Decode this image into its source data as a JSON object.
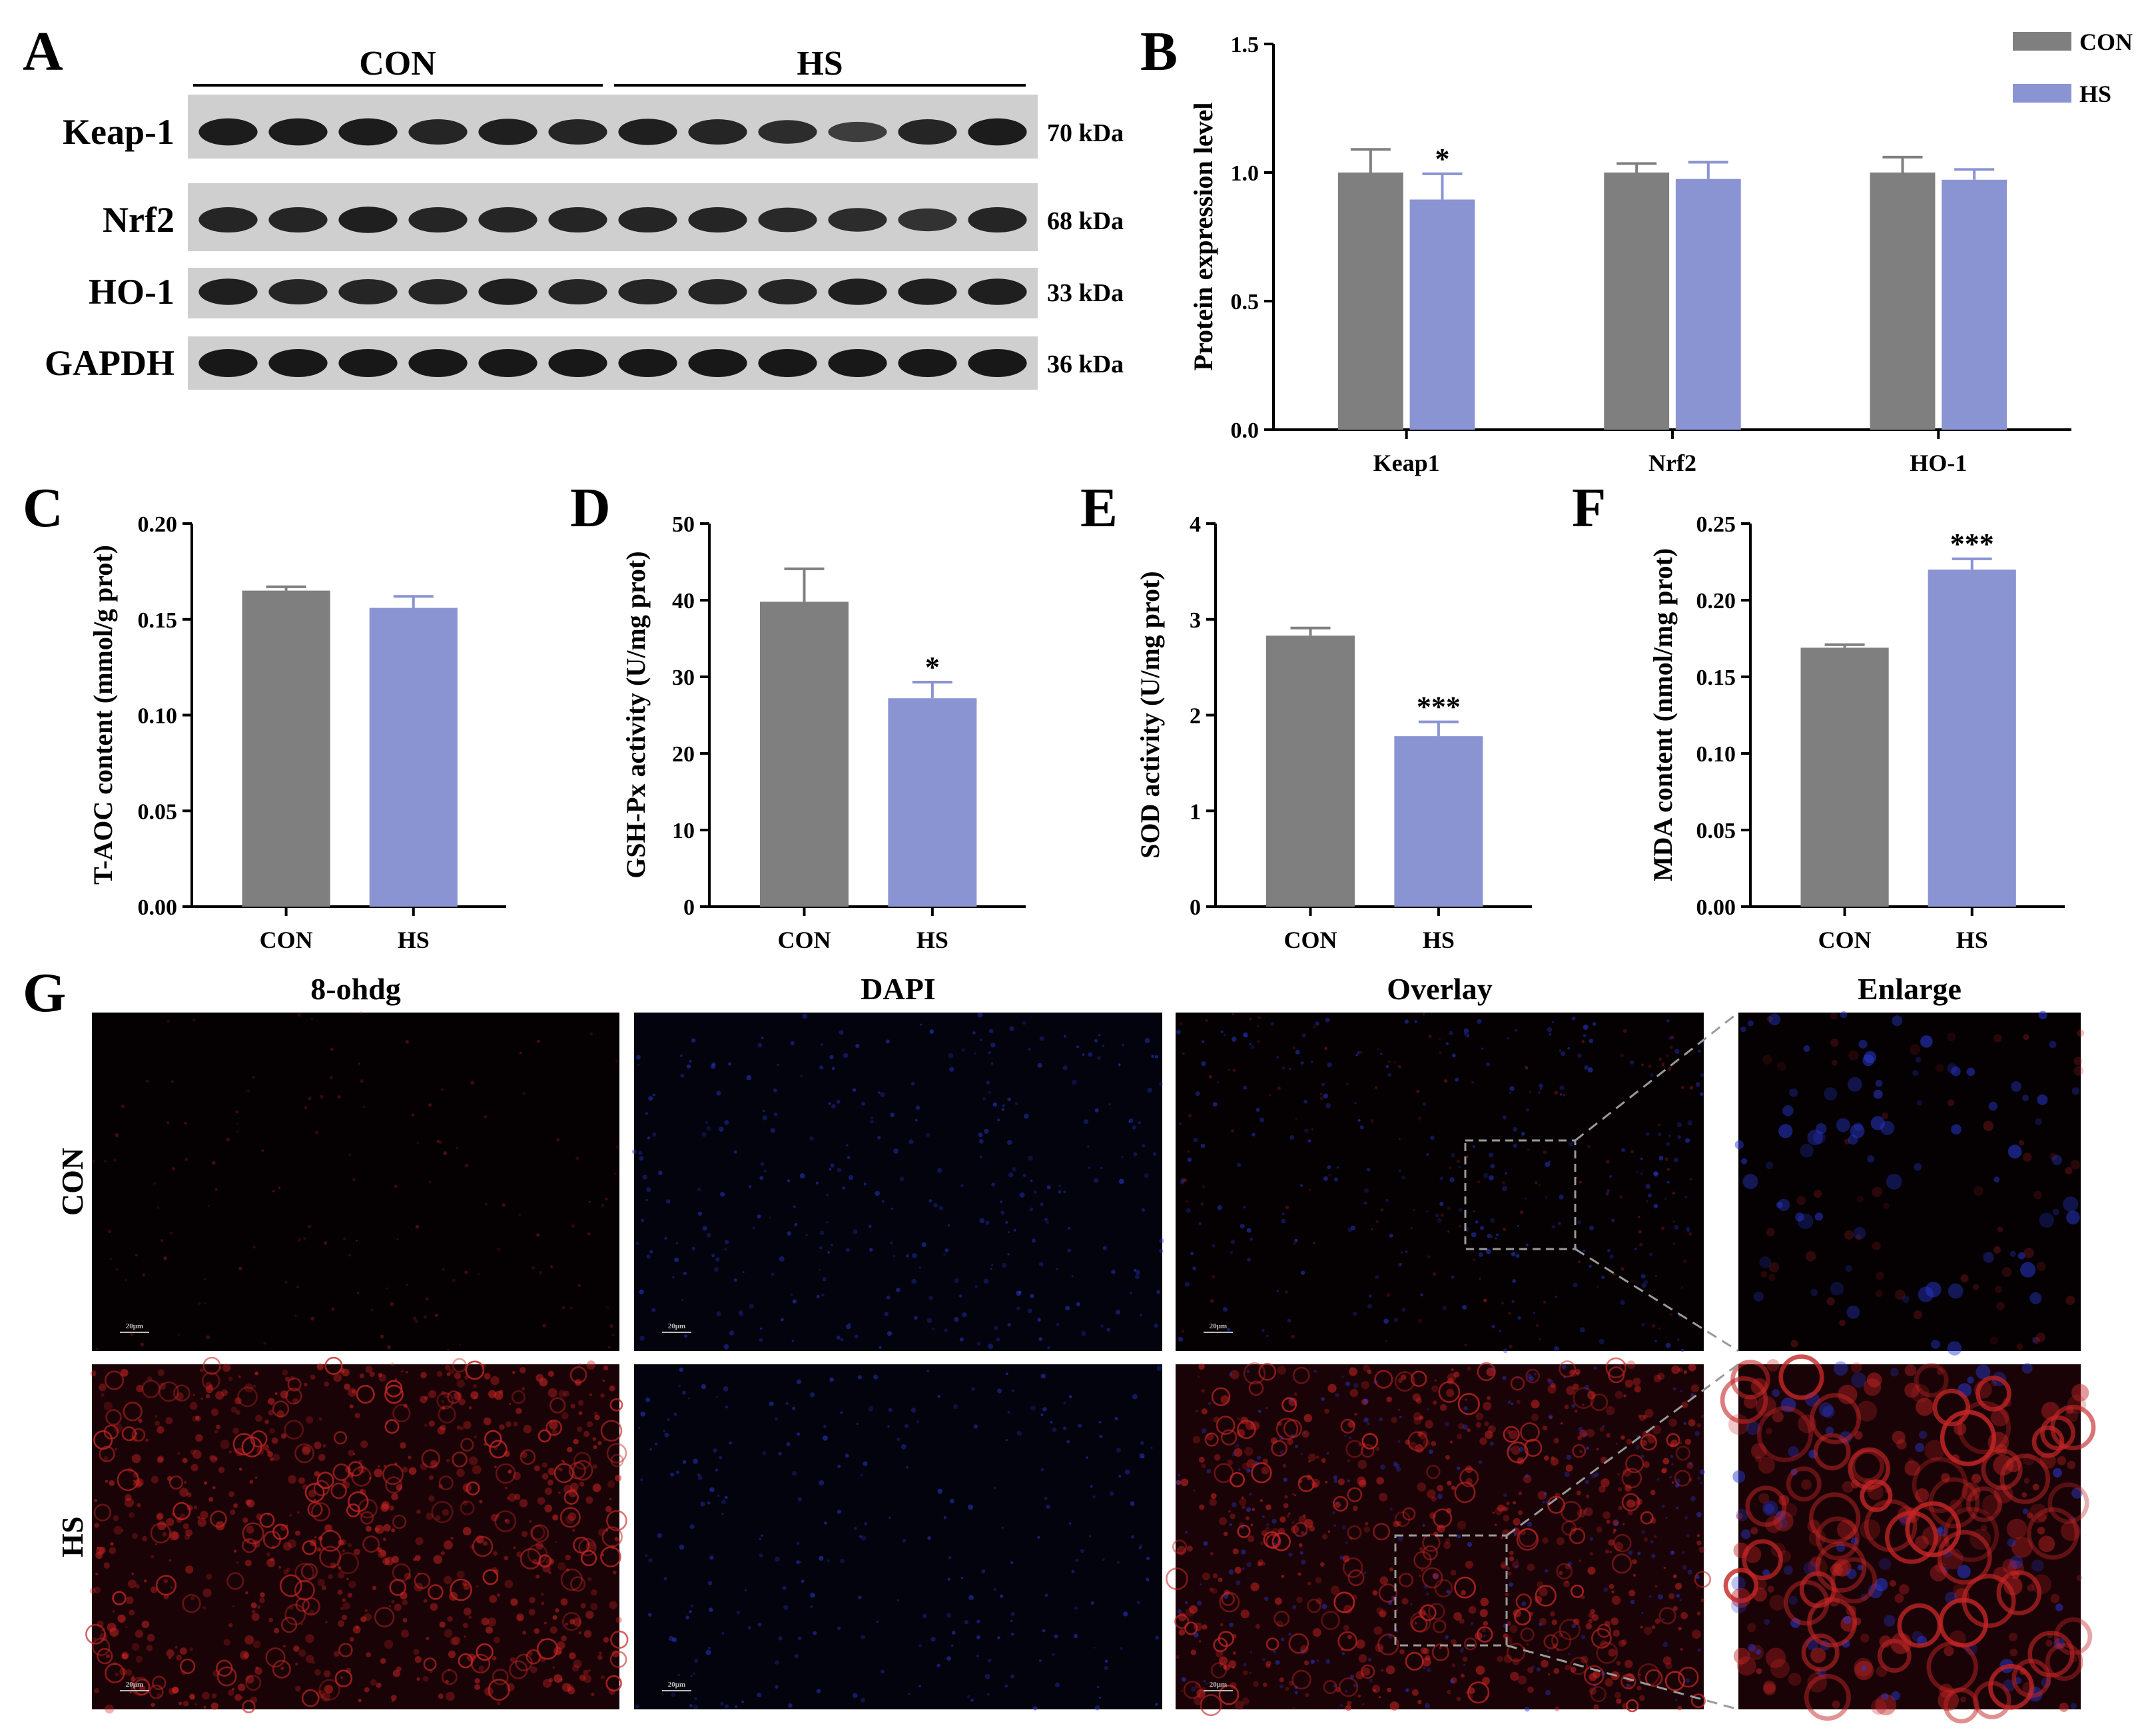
{
  "colors": {
    "con": "#7f7f7f",
    "hs": "#8b94d2",
    "axis": "#000000",
    "blot_bg": "#cfcfcf",
    "band": "#181818"
  },
  "panel_letters": [
    "A",
    "B",
    "C",
    "D",
    "E",
    "F",
    "G"
  ],
  "western_blot": {
    "groups": [
      "CON",
      "HS"
    ],
    "lanes_per_group": 6,
    "rows": [
      {
        "label": "Keap-1",
        "kda": "70 kDa",
        "intensity": [
          0.95,
          0.95,
          0.95,
          0.85,
          0.9,
          0.85,
          0.9,
          0.85,
          0.75,
          0.55,
          0.85,
          0.95
        ]
      },
      {
        "label": "Nrf2",
        "kda": "68 kDa",
        "intensity": [
          0.85,
          0.85,
          0.9,
          0.85,
          0.85,
          0.85,
          0.85,
          0.85,
          0.8,
          0.75,
          0.7,
          0.85
        ]
      },
      {
        "label": "HO-1",
        "kda": "33 kDa",
        "intensity": [
          0.9,
          0.85,
          0.85,
          0.85,
          0.9,
          0.85,
          0.85,
          0.85,
          0.85,
          0.9,
          0.9,
          0.9
        ]
      },
      {
        "label": "GAPDH",
        "kda": "36 kDa",
        "intensity": [
          1,
          1,
          1,
          1,
          1,
          1,
          1,
          1,
          1,
          1,
          1,
          1
        ]
      }
    ]
  },
  "chart_data": [
    {
      "panel": "B",
      "type": "bar",
      "ylabel": "Protein expression level",
      "categories": [
        "Keap1",
        "Nrf2",
        "HO-1"
      ],
      "yticks": [
        "0.0",
        "0.5",
        "1.0",
        "1.5"
      ],
      "ylim": [
        0,
        1.5
      ],
      "tick_step": 0.5,
      "legend_placement": "top-right",
      "series": [
        {
          "name": "CON",
          "values": [
            1.0,
            1.0,
            1.0
          ],
          "errors": [
            0.09,
            0.035,
            0.06
          ]
        },
        {
          "name": "HS",
          "values": [
            0.895,
            0.975,
            0.972
          ],
          "errors": [
            0.1,
            0.065,
            0.04
          ]
        }
      ],
      "annotations": [
        {
          "category": "Keap1",
          "series": "HS",
          "text": "*"
        }
      ]
    },
    {
      "panel": "C",
      "type": "bar",
      "ylabel": "T-AOC content (mmol/g prot)",
      "categories": [
        "CON",
        "HS"
      ],
      "yticks": [
        "0.00",
        "0.05",
        "0.10",
        "0.15",
        "0.20"
      ],
      "ylim": [
        0,
        0.2
      ],
      "tick_step": 0.05,
      "values": [
        0.165,
        0.156
      ],
      "errors": [
        0.002,
        0.006
      ],
      "annotations": []
    },
    {
      "panel": "D",
      "type": "bar",
      "ylabel": "GSH-Px activity (U/mg prot)",
      "categories": [
        "CON",
        "HS"
      ],
      "yticks": [
        "0",
        "10",
        "20",
        "30",
        "40",
        "50"
      ],
      "ylim": [
        0,
        50
      ],
      "tick_step": 10,
      "values": [
        39.8,
        27.2
      ],
      "errors": [
        4.3,
        2.1
      ],
      "annotations": [
        {
          "index": 1,
          "text": "*"
        }
      ]
    },
    {
      "panel": "E",
      "type": "bar",
      "ylabel": "SOD activity (U/mg prot)",
      "categories": [
        "CON",
        "HS"
      ],
      "yticks": [
        "0",
        "1",
        "2",
        "3",
        "4"
      ],
      "ylim": [
        0,
        4
      ],
      "tick_step": 1,
      "values": [
        2.83,
        1.78
      ],
      "errors": [
        0.08,
        0.15
      ],
      "annotations": [
        {
          "index": 1,
          "text": "***"
        }
      ]
    },
    {
      "panel": "F",
      "type": "bar",
      "ylabel": "MDA content (nmol/mg prot)",
      "categories": [
        "CON",
        "HS"
      ],
      "yticks": [
        "0.00",
        "0.05",
        "0.10",
        "0.15",
        "0.20",
        "0.25"
      ],
      "ylim": [
        0,
        0.25
      ],
      "tick_step": 0.05,
      "values": [
        0.169,
        0.22
      ],
      "errors": [
        0.002,
        0.007
      ],
      "annotations": [
        {
          "index": 1,
          "text": "***"
        }
      ]
    }
  ],
  "micrographs": {
    "columns": [
      "8-ohdg",
      "DAPI",
      "Overlay",
      "Enlarge"
    ],
    "rows": [
      "CON",
      "HS"
    ],
    "scale_bar": "20μm"
  }
}
